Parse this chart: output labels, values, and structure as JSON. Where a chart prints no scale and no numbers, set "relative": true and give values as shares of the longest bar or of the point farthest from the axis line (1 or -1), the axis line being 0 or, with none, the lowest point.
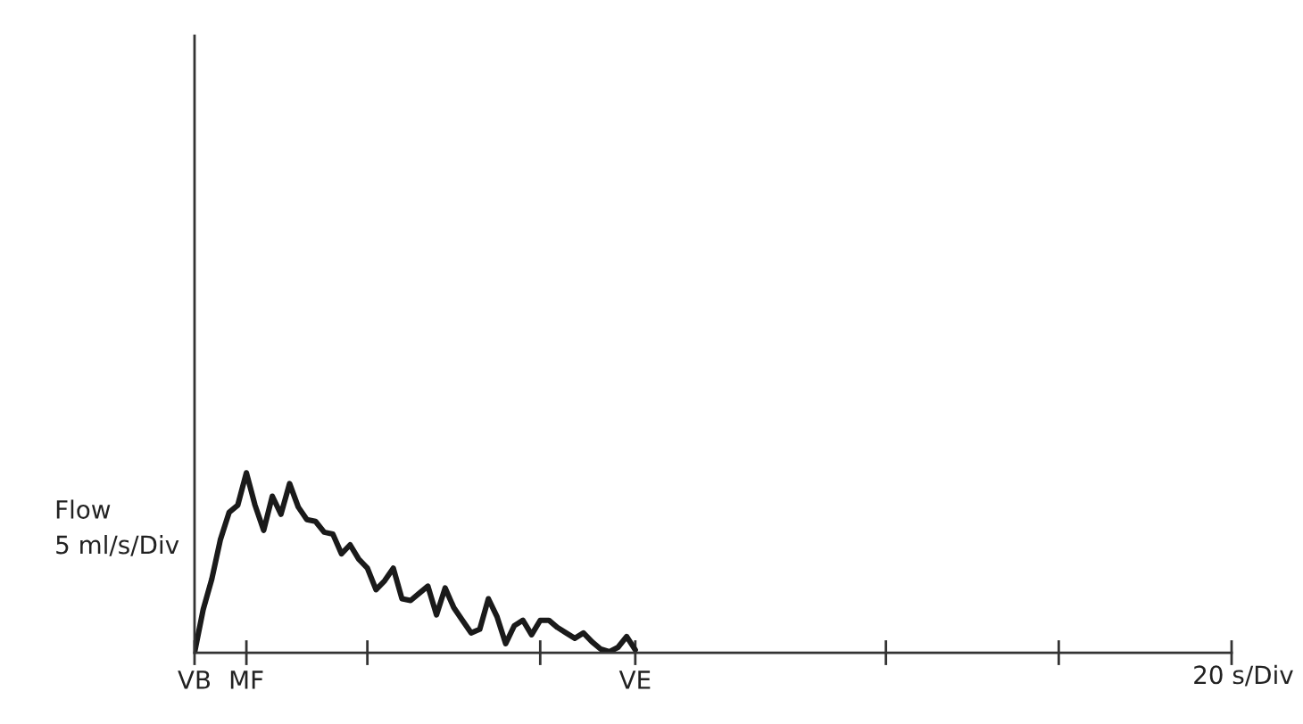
{
  "chart_data": {
    "type": "line",
    "relative": true,
    "ylabel": "Flow\n5 ml/s/Div",
    "xlabel": "20 s/Div",
    "categories": [
      "VB",
      null,
      null,
      null,
      null,
      null,
      "MF",
      null,
      null,
      null,
      null,
      null,
      null,
      null,
      null,
      null,
      null,
      null,
      null,
      null,
      null,
      null,
      null,
      null,
      null,
      null,
      null,
      null,
      null,
      null,
      null,
      null,
      null,
      null,
      null,
      null,
      null,
      null,
      null,
      null,
      null,
      null,
      null,
      null,
      null,
      null,
      null,
      null,
      null,
      null,
      null,
      "VE",
      null,
      null,
      null,
      null,
      null,
      null,
      null,
      null,
      null,
      null,
      null,
      null,
      null,
      null,
      null,
      null,
      null,
      null,
      null,
      null,
      null,
      null,
      null,
      null,
      null,
      null,
      null,
      null,
      null,
      null,
      null,
      null,
      null,
      null,
      null,
      null,
      null,
      null,
      null,
      null,
      null,
      null,
      null,
      null,
      null,
      null,
      null,
      null,
      null,
      null,
      null,
      null,
      null,
      null,
      null,
      null,
      null,
      null,
      null,
      null,
      null,
      null,
      null,
      null,
      null,
      null,
      null,
      null,
      null
    ],
    "series": [
      {
        "color": "#1a1a1a",
        "values": [
          0,
          0.24,
          0.41,
          0.63,
          0.78,
          0.82,
          1.0,
          0.82,
          0.68,
          0.87,
          0.77,
          0.94,
          0.81,
          0.74,
          0.73,
          0.67,
          0.66,
          0.55,
          0.6,
          0.52,
          0.47,
          0.35,
          0.4,
          0.47,
          0.3,
          0.29,
          0.33,
          0.37,
          0.21,
          0.36,
          0.25,
          0.18,
          0.11,
          0.13,
          0.3,
          0.2,
          0.05,
          0.15,
          0.18,
          0.1,
          0.18,
          0.18,
          0.14,
          0.11,
          0.08,
          0.11,
          0.06,
          0.02,
          0.005,
          0.03,
          0.09,
          0.016,
          null,
          null,
          null,
          null,
          null,
          null,
          null,
          null,
          null,
          null,
          null,
          null,
          null,
          null,
          null,
          null,
          null,
          null,
          null,
          null,
          null,
          null,
          null,
          null,
          null,
          null,
          null,
          null,
          null,
          null,
          null,
          null,
          null,
          null,
          null,
          null,
          null,
          null,
          null,
          null,
          null,
          null,
          null,
          null,
          null,
          null,
          null,
          null,
          null,
          null,
          null,
          null,
          null,
          null,
          null,
          null,
          null,
          null,
          null,
          null,
          null,
          null,
          null,
          null,
          null,
          null,
          null,
          null,
          null
        ]
      }
    ],
    "grid": false,
    "legend": false,
    "marker": "none",
    "line_style": "solid"
  }
}
